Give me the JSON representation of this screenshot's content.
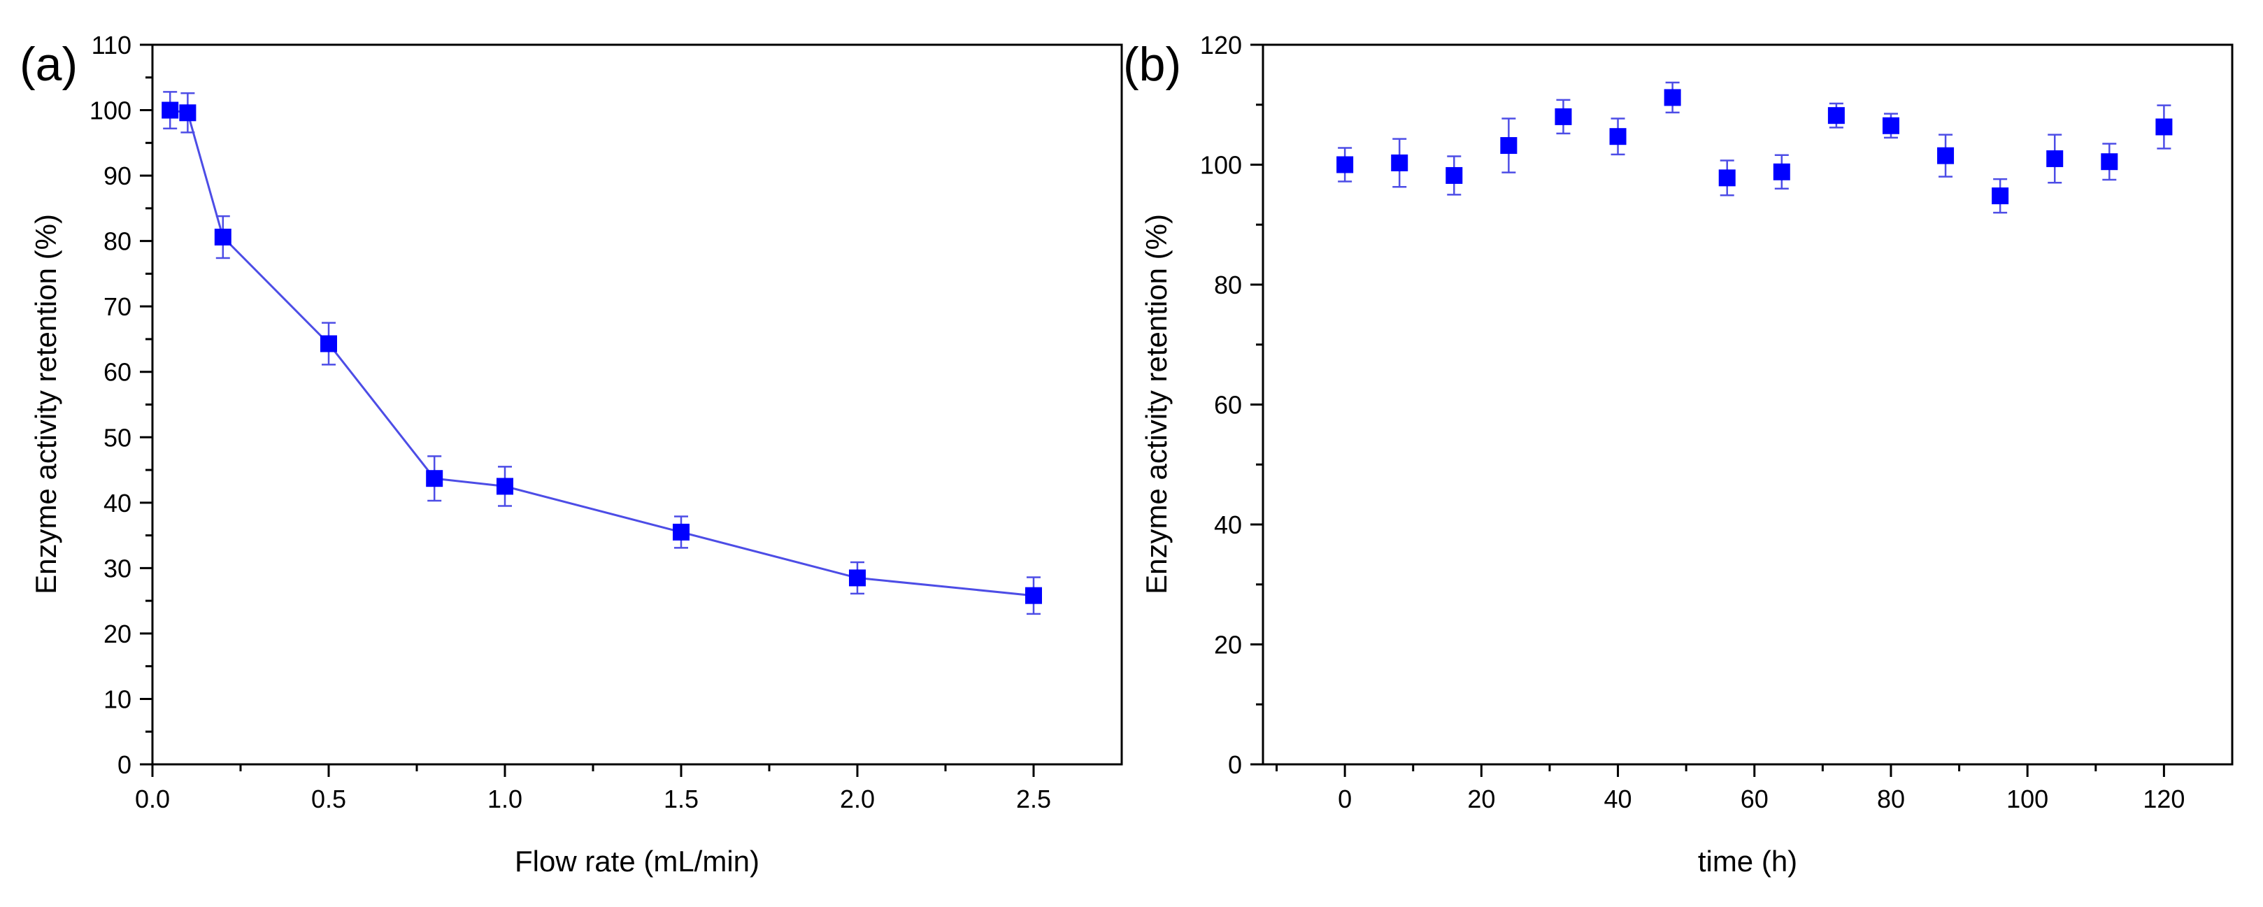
{
  "colors": {
    "series": "#0000ff",
    "line": "#4d4de6",
    "axis": "#000000"
  },
  "chart_data": [
    {
      "panel_label": "(a)",
      "type": "line",
      "xlabel": "Flow rate (mL/min)",
      "ylabel": "Enzyme activity retention (%)",
      "xlim": [
        0,
        2.75
      ],
      "ylim": [
        0,
        110
      ],
      "xticks": [
        0,
        0.5,
        1,
        1.5,
        2,
        2.5
      ],
      "xtick_labels": [
        "0.0",
        "0.5",
        "1.0",
        "1.5",
        "2.0",
        "2.5"
      ],
      "x_minor_ticks": [
        0.25,
        0.75,
        1.25,
        1.75,
        2.25
      ],
      "yticks": [
        0,
        10,
        20,
        30,
        40,
        50,
        60,
        70,
        80,
        90,
        100,
        110
      ],
      "ytick_labels": [
        "0",
        "10",
        "20",
        "30",
        "40",
        "50",
        "60",
        "70",
        "80",
        "90",
        "100",
        "110"
      ],
      "y_minor_ticks": [
        5,
        15,
        25,
        35,
        45,
        55,
        65,
        75,
        85,
        95,
        105
      ],
      "connect_points": true,
      "points": [
        {
          "x": 0.05,
          "y": 100.0,
          "err": 2.8
        },
        {
          "x": 0.1,
          "y": 99.6,
          "err": 3.0
        },
        {
          "x": 0.2,
          "y": 80.6,
          "err": 3.2
        },
        {
          "x": 0.5,
          "y": 64.3,
          "err": 3.2
        },
        {
          "x": 0.8,
          "y": 43.7,
          "err": 3.4
        },
        {
          "x": 1.0,
          "y": 42.5,
          "err": 3.0
        },
        {
          "x": 1.5,
          "y": 35.5,
          "err": 2.4
        },
        {
          "x": 2.0,
          "y": 28.5,
          "err": 2.4
        },
        {
          "x": 2.5,
          "y": 25.8,
          "err": 2.8
        }
      ]
    },
    {
      "panel_label": "(b)",
      "type": "scatter",
      "xlabel": "time (h)",
      "ylabel": "Enzyme activity retention (%)",
      "xlim": [
        -12,
        130
      ],
      "ylim": [
        0,
        120
      ],
      "xticks": [
        0,
        20,
        40,
        60,
        80,
        100,
        120
      ],
      "xtick_labels": [
        "0",
        "20",
        "40",
        "60",
        "80",
        "100",
        "120"
      ],
      "x_minor_ticks": [
        -10,
        10,
        30,
        50,
        70,
        90,
        110
      ],
      "yticks": [
        0,
        20,
        40,
        60,
        80,
        100,
        120
      ],
      "ytick_labels": [
        "0",
        "20",
        "40",
        "60",
        "80",
        "100",
        "120"
      ],
      "y_minor_ticks": [
        10,
        30,
        50,
        70,
        90,
        110
      ],
      "connect_points": false,
      "points": [
        {
          "x": 0,
          "y": 100.0,
          "err": 2.8
        },
        {
          "x": 8,
          "y": 100.3,
          "err": 4.0
        },
        {
          "x": 16,
          "y": 98.2,
          "err": 3.2
        },
        {
          "x": 24,
          "y": 103.2,
          "err": 4.5
        },
        {
          "x": 32,
          "y": 108.0,
          "err": 2.8
        },
        {
          "x": 40,
          "y": 104.7,
          "err": 3.0
        },
        {
          "x": 48,
          "y": 111.2,
          "err": 2.5
        },
        {
          "x": 56,
          "y": 97.8,
          "err": 2.9
        },
        {
          "x": 64,
          "y": 98.8,
          "err": 2.8
        },
        {
          "x": 72,
          "y": 108.2,
          "err": 2.0
        },
        {
          "x": 80,
          "y": 106.5,
          "err": 2.0
        },
        {
          "x": 88,
          "y": 101.5,
          "err": 3.5
        },
        {
          "x": 96,
          "y": 94.8,
          "err": 2.8
        },
        {
          "x": 104,
          "y": 101.0,
          "err": 4.0
        },
        {
          "x": 112,
          "y": 100.5,
          "err": 3.0
        },
        {
          "x": 120,
          "y": 106.3,
          "err": 3.6
        }
      ]
    }
  ]
}
